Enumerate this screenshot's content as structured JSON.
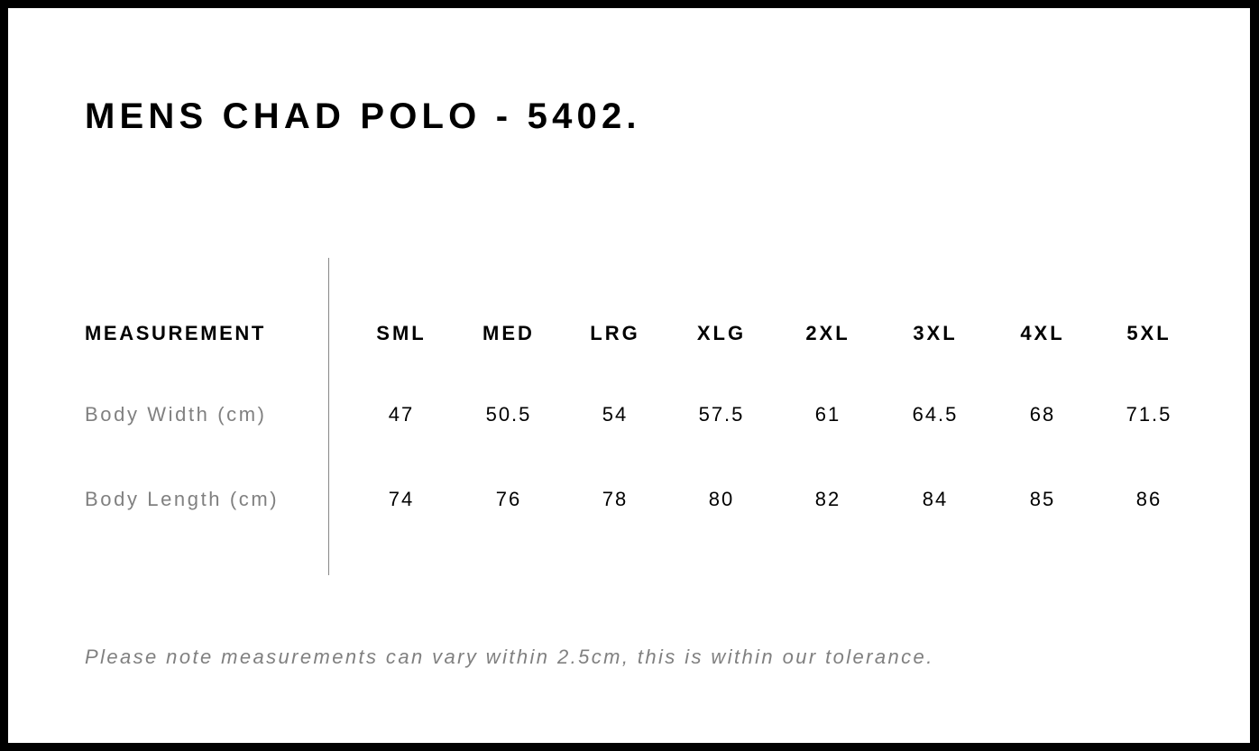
{
  "title": "MENS CHAD POLO - 5402.",
  "table": {
    "header_label": "MEASUREMENT",
    "sizes": [
      "SML",
      "MED",
      "LRG",
      "XLG",
      "2XL",
      "3XL",
      "4XL",
      "5XL"
    ],
    "rows": [
      {
        "label": "Body Width (cm)",
        "values": [
          "47",
          "50.5",
          "54",
          "57.5",
          "61",
          "64.5",
          "68",
          "71.5"
        ]
      },
      {
        "label": "Body Length (cm)",
        "values": [
          "74",
          "76",
          "78",
          "80",
          "82",
          "84",
          "85",
          "86"
        ]
      }
    ]
  },
  "note": "Please note measurements can vary within 2.5cm, this is within our tolerance."
}
